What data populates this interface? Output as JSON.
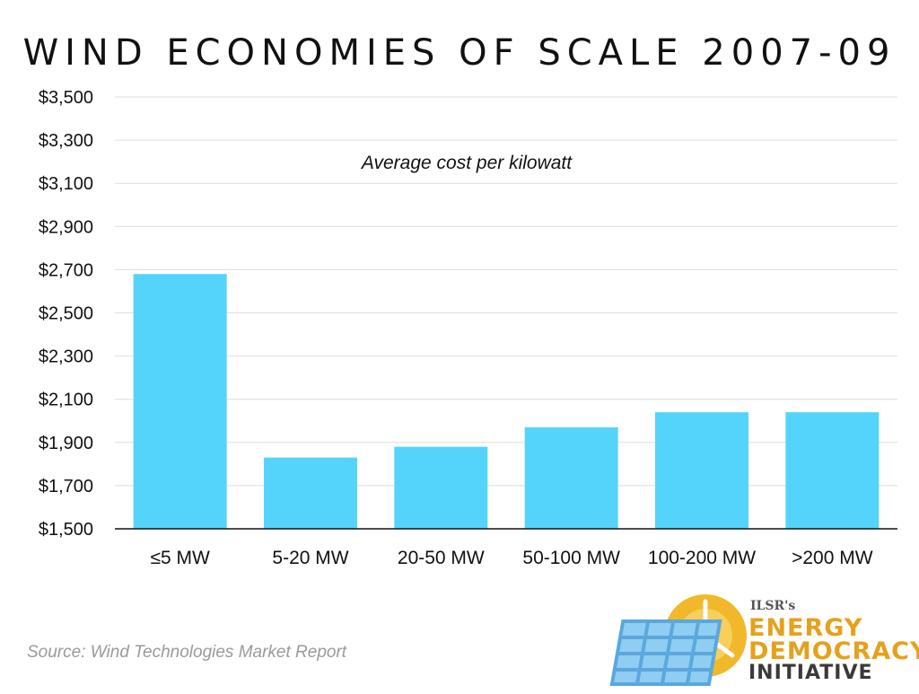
{
  "title": "WIND ECONOMIES OF SCALE 2007-09",
  "annotation": "Average cost per kilowatt",
  "source": "Source: Wind Technologies Market Report",
  "logo": {
    "org": "ILSR's",
    "line1": "ENERGY",
    "line2": "DEMOCRACY",
    "line3": "INITIATIVE"
  },
  "colors": {
    "bar": "#55d4fb",
    "grid": "#dedede",
    "axis": "#111111"
  },
  "chart_data": {
    "type": "bar",
    "title": "WIND ECONOMIES OF SCALE 2007-09",
    "subtitle": "Average cost per kilowatt",
    "categories": [
      "≤5 MW",
      "5-20 MW",
      "20-50 MW",
      "50-100 MW",
      "100-200 MW",
      ">200 MW"
    ],
    "values": [
      2680,
      1830,
      1880,
      1970,
      2040,
      2040
    ],
    "ylim": [
      1500,
      3500
    ],
    "yticks": [
      1500,
      1700,
      1900,
      2100,
      2300,
      2500,
      2700,
      2900,
      3100,
      3300,
      3500
    ],
    "ytick_labels": [
      "$1,500",
      "$1,700",
      "$1,900",
      "$2,100",
      "$2,300",
      "$2,500",
      "$2,700",
      "$2,900",
      "$3,100",
      "$3,300",
      "$3,500"
    ],
    "grid": true,
    "legend": "none"
  }
}
